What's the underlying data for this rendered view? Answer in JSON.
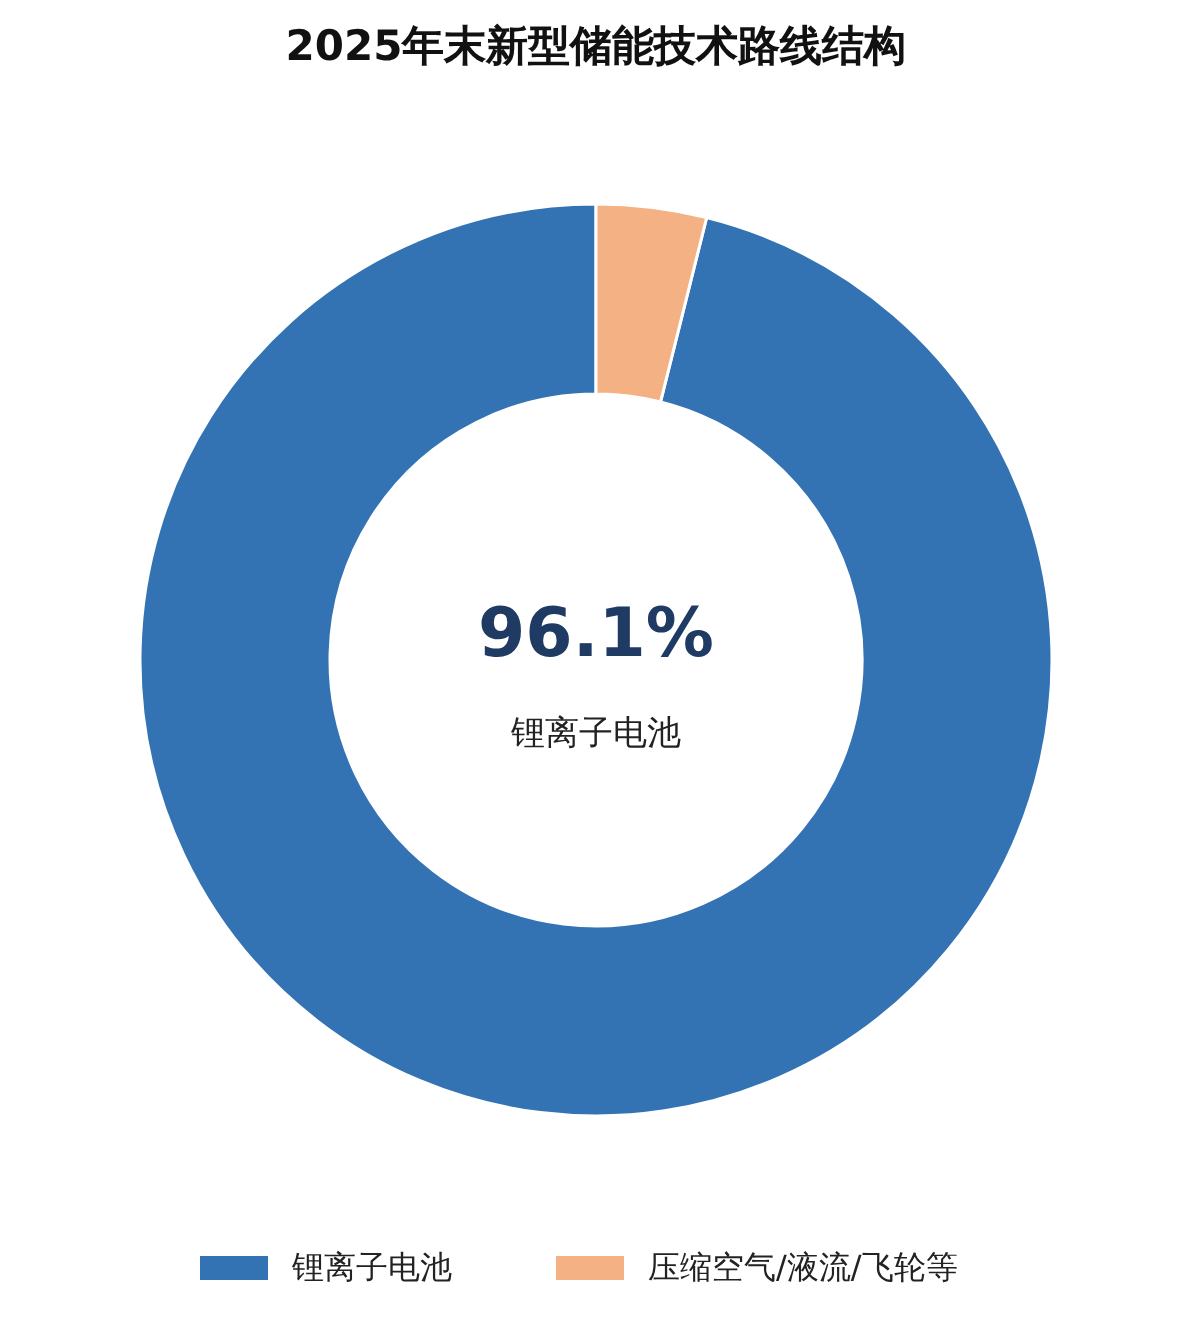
{
  "chart_data": {
    "type": "donut",
    "title": "2025年末新型储能技术路线结构",
    "categories": [
      "锂离子电池",
      "压缩空气/液流/飞轮等"
    ],
    "values": [
      96.1,
      3.9
    ],
    "colors": [
      "#3473b3",
      "#f4b183"
    ],
    "annotations": [
      "96.1%",
      "锂离子电池"
    ],
    "legend": "bottom"
  }
}
